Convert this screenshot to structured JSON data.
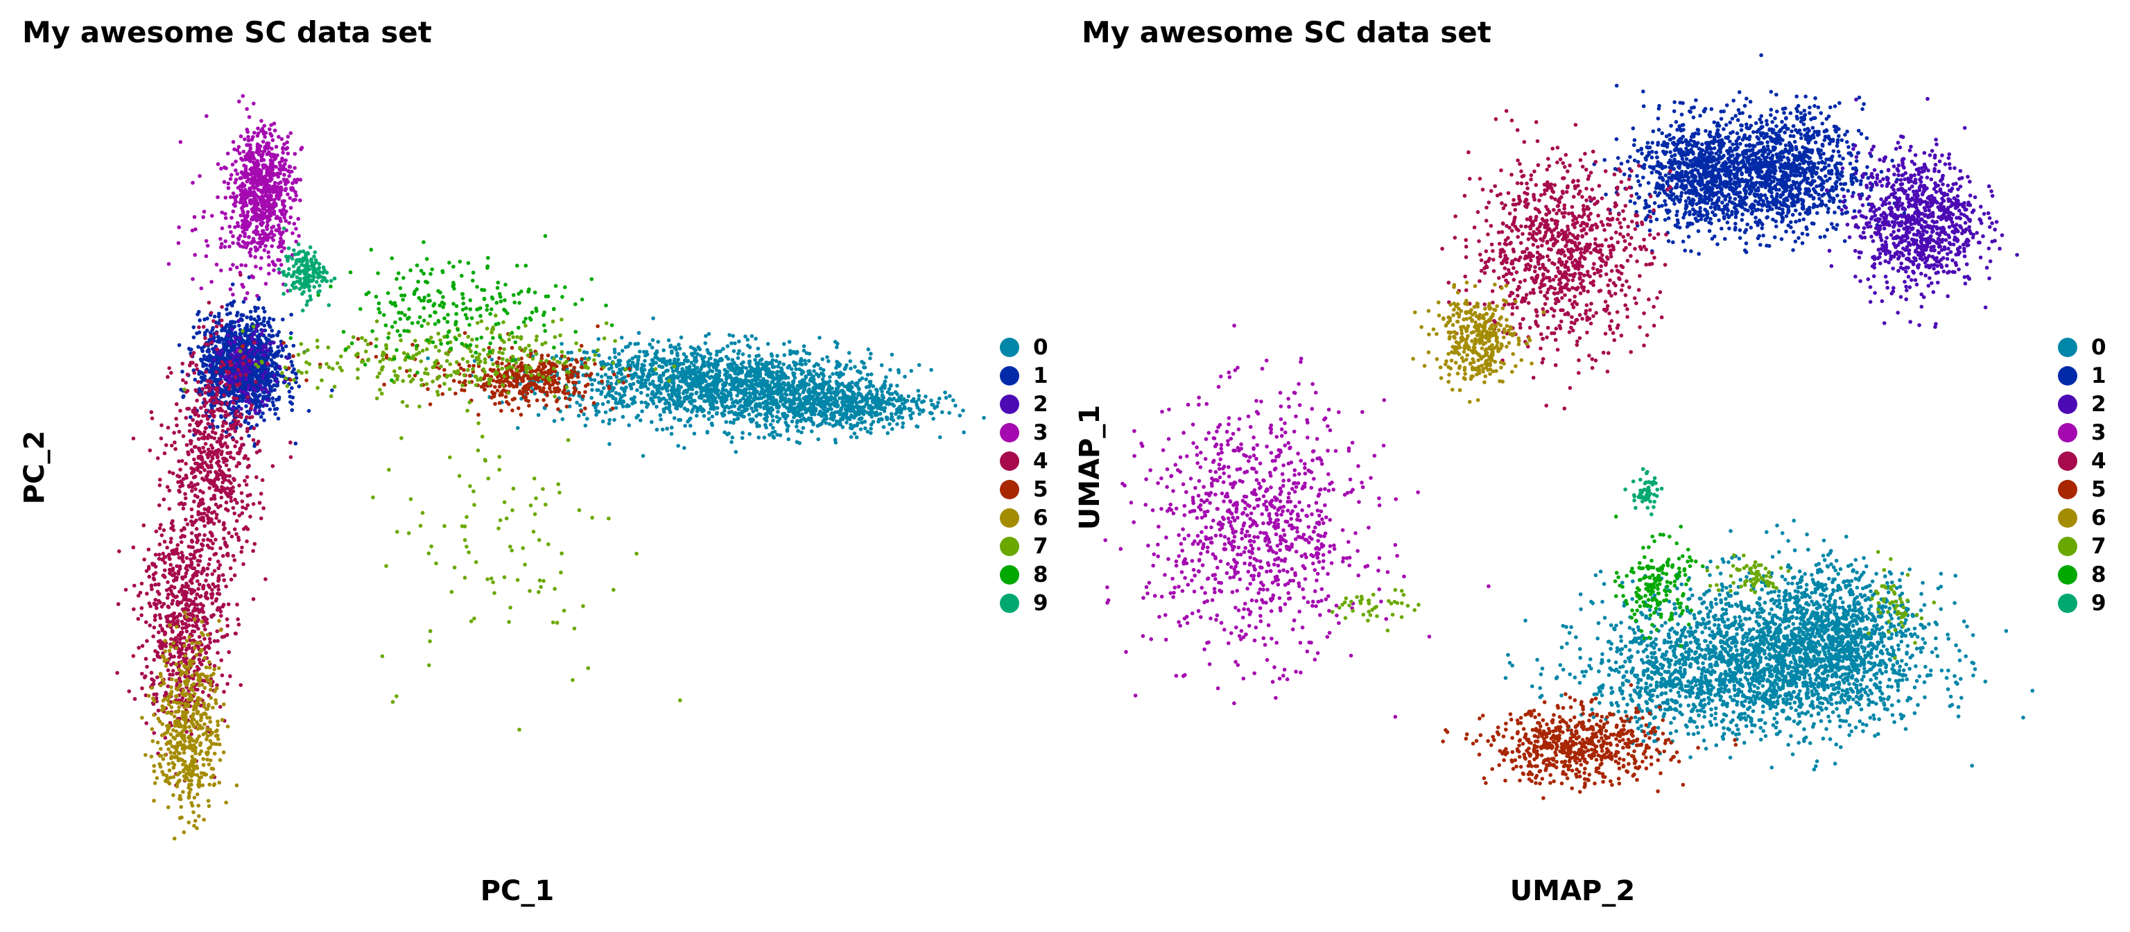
{
  "colors": [
    "#0086a8",
    "#002aa8",
    "#4c0ab4",
    "#a40ab0",
    "#a60a4c",
    "#a82600",
    "#a48c00",
    "#6aa800",
    "#00a800",
    "#00a870"
  ],
  "legend": [
    "0",
    "1",
    "2",
    "3",
    "4",
    "5",
    "6",
    "7",
    "8",
    "9"
  ],
  "panels": {
    "pca": {
      "title": "My awesome SC data set",
      "xlabel": "PC_1",
      "ylabel": "PC_2"
    },
    "umap": {
      "title": "My awesome SC data set",
      "xlabel": "UMAP_2",
      "ylabel": "UMAP_1"
    }
  },
  "chart_data": [
    {
      "type": "scatter",
      "title": "My awesome SC data set",
      "xlabel": "PC_1",
      "ylabel": "PC_2",
      "legend_position": "right",
      "grid": false,
      "axes_shown": false,
      "series": [
        {
          "name": "0",
          "color": "#0086a8",
          "clusters": [
            {
              "x": 50,
              "y": 3,
              "sx": 14,
              "sy": 3,
              "n": 900
            },
            {
              "x": 65,
              "y": 1,
              "sx": 12,
              "sy": 3,
              "n": 800
            },
            {
              "x": 80,
              "y": -1,
              "sx": 8,
              "sy": 2,
              "n": 500
            }
          ]
        },
        {
          "name": "1",
          "color": "#002aa8",
          "clusters": [
            {
              "x": -34,
              "y": 5,
              "sx": 4,
              "sy": 4,
              "n": 1300
            }
          ]
        },
        {
          "name": "2",
          "color": "#4c0ab4",
          "clusters": [
            {
              "x": -33,
              "y": 5,
              "sx": 3,
              "sy": 3,
              "n": 150
            }
          ]
        },
        {
          "name": "3",
          "color": "#a40ab0",
          "clusters": [
            {
              "x": -30,
              "y": 33,
              "sx": 3,
              "sy": 5,
              "n": 700
            },
            {
              "x": -35,
              "y": 28,
              "sx": 5,
              "sy": 6,
              "n": 100
            }
          ]
        },
        {
          "name": "4",
          "color": "#a60a4c",
          "clusters": [
            {
              "x": -39,
              "y": -10,
              "sx": 4,
              "sy": 9,
              "n": 600
            },
            {
              "x": -45,
              "y": -35,
              "sx": 4,
              "sy": 9,
              "n": 700
            }
          ]
        },
        {
          "name": "5",
          "color": "#a82600",
          "clusters": [
            {
              "x": 20,
              "y": 3,
              "sx": 7,
              "sy": 2,
              "n": 350
            },
            {
              "x": 0,
              "y": 5,
              "sx": 14,
              "sy": 3,
              "n": 40
            }
          ]
        },
        {
          "name": "6",
          "color": "#a48c00",
          "clusters": [
            {
              "x": -44,
              "y": -52,
              "sx": 3,
              "sy": 7,
              "n": 500
            }
          ]
        },
        {
          "name": "7",
          "color": "#6aa800",
          "clusters": [
            {
              "x": 5,
              "y": 6,
              "sx": 15,
              "sy": 3,
              "n": 300
            },
            {
              "x": 15,
              "y": -22,
              "sx": 12,
              "sy": 12,
              "n": 100
            }
          ]
        },
        {
          "name": "8",
          "color": "#00a800",
          "clusters": [
            {
              "x": 6,
              "y": 15,
              "sx": 11,
              "sy": 4,
              "n": 220
            }
          ]
        },
        {
          "name": "9",
          "color": "#00a870",
          "clusters": [
            {
              "x": -22,
              "y": 20,
              "sx": 2,
              "sy": 2,
              "n": 160
            }
          ]
        }
      ]
    },
    {
      "type": "scatter",
      "title": "My awesome SC data set",
      "xlabel": "UMAP_2",
      "ylabel": "UMAP_1",
      "legend_position": "right",
      "grid": false,
      "axes_shown": false,
      "series": [
        {
          "name": "0",
          "color": "#0086a8",
          "clusters": [
            {
              "x": 4,
              "y": -7,
              "sx": 2.4,
              "sy": 1.2,
              "n": 1500
            },
            {
              "x": 6,
              "y": -6.5,
              "sx": 1.3,
              "sy": 1.2,
              "n": 900
            },
            {
              "x": 2.5,
              "y": -8,
              "sx": 2,
              "sy": 0.8,
              "n": 600
            }
          ]
        },
        {
          "name": "1",
          "color": "#002aa8",
          "clusters": [
            {
              "x": 2,
              "y": 8.5,
              "sx": 1,
              "sy": 0.9,
              "n": 800
            },
            {
              "x": 4.5,
              "y": 8.6,
              "sx": 1.2,
              "sy": 1,
              "n": 1100
            }
          ]
        },
        {
          "name": "2",
          "color": "#4c0ab4",
          "clusters": [
            {
              "x": 8.5,
              "y": 7,
              "sx": 0.9,
              "sy": 1.1,
              "n": 900
            }
          ]
        },
        {
          "name": "3",
          "color": "#a40ab0",
          "clusters": [
            {
              "x": -11,
              "y": -3,
              "sx": 1.6,
              "sy": 2,
              "n": 900
            }
          ]
        },
        {
          "name": "4",
          "color": "#a60a4c",
          "clusters": [
            {
              "x": -2,
              "y": 6,
              "sx": 1.3,
              "sy": 1.5,
              "n": 900
            }
          ]
        },
        {
          "name": "5",
          "color": "#a82600",
          "clusters": [
            {
              "x": -1.5,
              "y": -10,
              "sx": 1.3,
              "sy": 0.6,
              "n": 600
            }
          ]
        },
        {
          "name": "6",
          "color": "#a48c00",
          "clusters": [
            {
              "x": -4.5,
              "y": 3.2,
              "sx": 0.6,
              "sy": 0.7,
              "n": 350
            }
          ]
        },
        {
          "name": "7",
          "color": "#6aa800",
          "clusters": [
            {
              "x": 3.5,
              "y": -4.5,
              "sx": 0.6,
              "sy": 0.3,
              "n": 60
            },
            {
              "x": -7.5,
              "y": -5.5,
              "sx": 0.6,
              "sy": 0.3,
              "n": 40
            },
            {
              "x": 8,
              "y": -5.5,
              "sx": 0.4,
              "sy": 0.6,
              "n": 50
            }
          ]
        },
        {
          "name": "8",
          "color": "#00a800",
          "clusters": [
            {
              "x": 0.8,
              "y": -4.8,
              "sx": 0.5,
              "sy": 0.7,
              "n": 170
            }
          ]
        },
        {
          "name": "9",
          "color": "#00a870",
          "clusters": [
            {
              "x": 0.5,
              "y": -1.8,
              "sx": 0.2,
              "sy": 0.3,
              "n": 60
            }
          ]
        }
      ]
    }
  ]
}
